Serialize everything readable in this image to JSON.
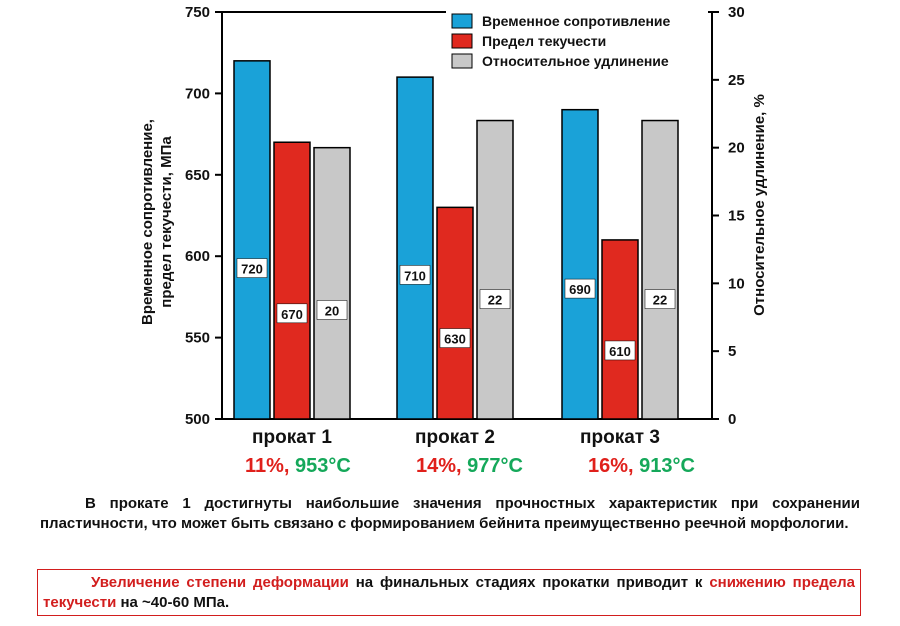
{
  "chart_data": {
    "type": "bar",
    "categories": [
      "прокат 1",
      "прокат 2",
      "прокат 3"
    ],
    "series": [
      {
        "name": "Временное сопротивление",
        "axis": "left",
        "values": [
          720,
          710,
          690
        ],
        "labels": [
          "720",
          "710",
          "690"
        ],
        "color": "#1aa2d8"
      },
      {
        "name": "Предел текучести",
        "axis": "left",
        "values": [
          670,
          630,
          610
        ],
        "labels": [
          "670",
          "630",
          "610"
        ],
        "color": "#e0291f"
      },
      {
        "name": "Относительное удлинение",
        "axis": "right",
        "values": [
          20,
          22,
          22
        ],
        "labels": [
          "20",
          "22",
          "22"
        ],
        "color": "#c8c8c8"
      }
    ],
    "ylabel": "Временное сопротивление,\nпредел текучести, МПа",
    "y2label": "Относительное удлинение, %",
    "ylim": [
      500,
      750
    ],
    "yticks": [
      "500",
      "550",
      "600",
      "650",
      "700",
      "750"
    ],
    "y2lim": [
      0,
      30
    ],
    "y2ticks": [
      "0",
      "5",
      "10",
      "15",
      "20",
      "25",
      "30"
    ],
    "legend_position": "top-right",
    "grid": false
  },
  "conditions": [
    {
      "pct": "11%,",
      "temp": "953°C"
    },
    {
      "pct": "14%,",
      "temp": "977°C"
    },
    {
      "pct": "16%,",
      "temp": "913°C"
    }
  ],
  "paragraph": "В прокате 1 достигнуты наибольшие значения прочностных характеристик при сохранении пластичности, что может быть связано с формированием бейнита преимущественно реечной морфологии.",
  "note": {
    "part1": "Увеличение степени деформации",
    "part2": " на финальных стадиях прокатки приводит к ",
    "part3": "снижению предела текучести",
    "part4": " на ~40-60 МПа."
  },
  "colors": {
    "accent_red": "#d21e1e",
    "temp_green": "#15a85a"
  }
}
